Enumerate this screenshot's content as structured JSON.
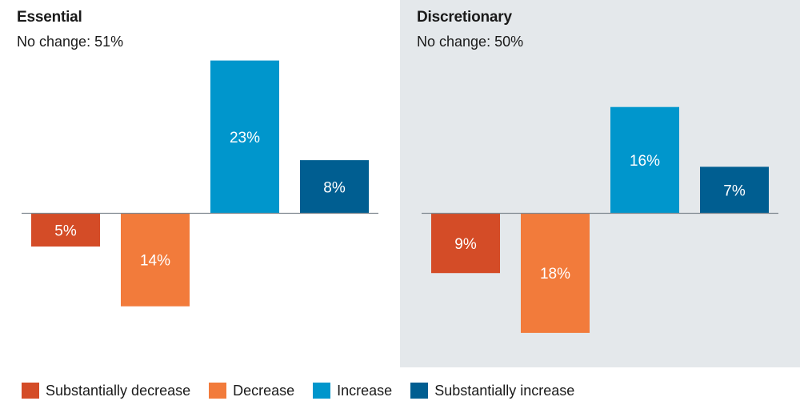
{
  "chart_data": [
    {
      "type": "bar",
      "title": "Essential",
      "subtitle": "No change: 51%",
      "categories": [
        "Substantially decrease",
        "Decrease",
        "Increase",
        "Substantially increase"
      ],
      "values": [
        -5,
        -14,
        23,
        8
      ],
      "value_labels": [
        "5%",
        "14%",
        "23%",
        "8%"
      ],
      "colors": [
        "#d44c27",
        "#f27b3b",
        "#0096cc",
        "#005e91"
      ],
      "ylim": [
        -23,
        23
      ],
      "background": "#ffffff"
    },
    {
      "type": "bar",
      "title": "Discretionary",
      "subtitle": "No change: 50%",
      "categories": [
        "Substantially decrease",
        "Decrease",
        "Increase",
        "Substantially increase"
      ],
      "values": [
        -9,
        -18,
        16,
        7
      ],
      "value_labels": [
        "9%",
        "18%",
        "16%",
        "7%"
      ],
      "colors": [
        "#d44c27",
        "#f27b3b",
        "#0096cc",
        "#005e91"
      ],
      "ylim": [
        -23,
        23
      ],
      "background": "#e4e8eb"
    }
  ],
  "legend": {
    "placement": "bottom-left",
    "items": [
      {
        "label": "Substantially decrease",
        "color": "#d44c27"
      },
      {
        "label": "Decrease",
        "color": "#f27b3b"
      },
      {
        "label": "Increase",
        "color": "#0096cc"
      },
      {
        "label": "Substantially increase",
        "color": "#005e91"
      }
    ]
  }
}
